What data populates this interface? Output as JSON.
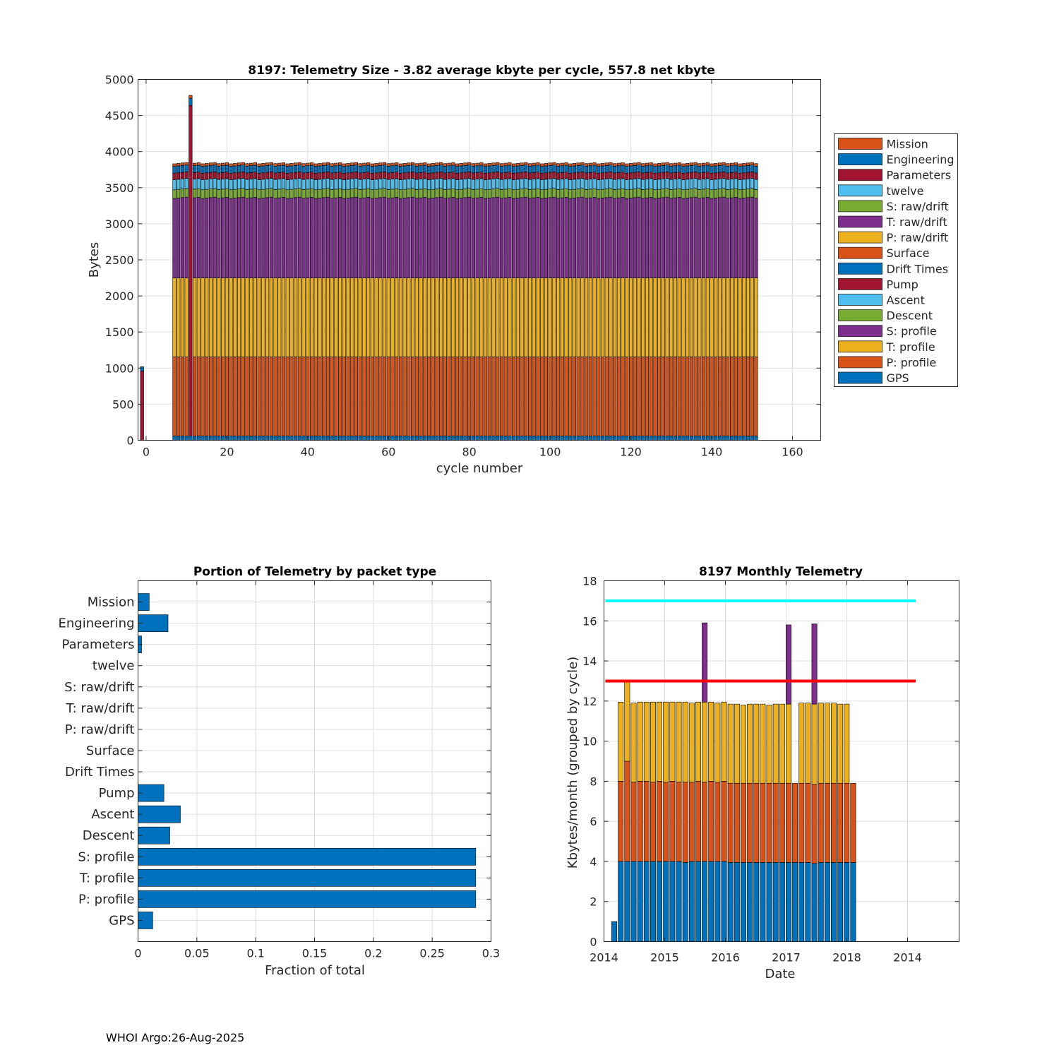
{
  "footer": "WHOI Argo:26-Aug-2025",
  "colors": {
    "Mission": "#D95319",
    "Engineering": "#0072BD",
    "Parameters": "#A2142F",
    "twelve": "#4DBEEE",
    "S: raw/drift": "#77AC30",
    "T: raw/drift": "#7E2F8E",
    "P: raw/drift": "#EDB120",
    "Surface": "#D95319",
    "Drift Times": "#0072BD",
    "Pump": "#A2142F",
    "Ascent": "#4DBEEE",
    "Descent": "#77AC30",
    "S: profile": "#7E2F8E",
    "T: profile": "#EDB120",
    "P: profile": "#D95319",
    "GPS": "#0072BD",
    "bar_blue": "#0072BD",
    "cyan_line": "#00FFFF",
    "red_line": "#FF0000"
  },
  "chart_data": [
    {
      "id": "telemetry_size",
      "type": "bar",
      "stacked": true,
      "title": "8197: Telemetry Size - 3.82 average kbyte per cycle,  557.8 net kbyte",
      "xlabel": "cycle number",
      "ylabel": "Bytes",
      "xlim": [
        -2,
        167
      ],
      "ylim": [
        0,
        5000
      ],
      "xticks": [
        0,
        20,
        40,
        60,
        80,
        100,
        120,
        140,
        160
      ],
      "yticks": [
        0,
        500,
        1000,
        1500,
        2000,
        2500,
        3000,
        3500,
        4000,
        4500,
        5000
      ],
      "legend_position": "outside-right",
      "legend": [
        "Mission",
        "Engineering",
        "Parameters",
        "twelve",
        "S: raw/drift",
        "T: raw/drift",
        "P: raw/drift",
        "Surface",
        "Drift Times",
        "Pump",
        "Ascent",
        "Descent",
        "S: profile",
        "T: profile",
        "P: profile",
        "GPS"
      ],
      "stack_order": [
        "GPS",
        "P: profile",
        "T: profile",
        "S: profile",
        "Descent",
        "Ascent",
        "Pump",
        "Drift Times",
        "Surface",
        "P: raw/drift",
        "T: raw/drift",
        "S: raw/drift",
        "twelve",
        "Parameters",
        "Engineering",
        "Mission"
      ],
      "special_cycles": [
        {
          "cycle": -1,
          "segments": {
            "Pump": 960,
            "Engineering": 60,
            "Mission": 0
          }
        },
        {
          "cycle": 11,
          "segments": {
            "GPS": 60,
            "Pump": 4580,
            "Engineering": 100,
            "Mission": 40
          }
        }
      ],
      "typical_cycle": {
        "first_cycle": 7,
        "last_cycle": 151,
        "segments": {
          "GPS": 60,
          "P: profile": 1095,
          "T: profile": 1095,
          "S: profile": 1110,
          "Descent": 120,
          "Ascent": 140,
          "Pump": 90,
          "Engineering": 95,
          "Mission": 35
        }
      }
    },
    {
      "id": "portion_by_type",
      "type": "bar",
      "orientation": "horizontal",
      "title": "Portion of Telemetry by packet type",
      "xlabel": "Fraction of total",
      "ylabel": "",
      "xlim": [
        0,
        0.3
      ],
      "xticks": [
        0,
        0.05,
        0.1,
        0.15,
        0.2,
        0.25,
        0.3
      ],
      "xtick_labels": [
        "0",
        "0.05",
        "0.1",
        "0.15",
        "0.2",
        "0.25",
        "0.3"
      ],
      "categories": [
        "Mission",
        "Engineering",
        "Parameters",
        "twelve",
        "S: raw/drift",
        "T: raw/drift",
        "P: raw/drift",
        "Surface",
        "Drift Times",
        "Pump",
        "Ascent",
        "Descent",
        "S: profile",
        "T: profile",
        "P: profile",
        "GPS"
      ],
      "values": [
        0.0095,
        0.0255,
        0.003,
        0,
        0,
        0,
        0,
        0,
        0,
        0.022,
        0.036,
        0.027,
        0.287,
        0.287,
        0.287,
        0.0125
      ]
    },
    {
      "id": "monthly_telemetry",
      "type": "bar",
      "stacked": true,
      "title": "8197 Monthly Telemetry",
      "xlabel": "Date",
      "ylabel": "Kbytes/month (grouped by cycle)",
      "ylim": [
        0,
        18
      ],
      "yticks": [
        0,
        2,
        4,
        6,
        8,
        10,
        12,
        14,
        16,
        18
      ],
      "xtick_labels": [
        "2014",
        "2015",
        "2016",
        "2017",
        "2018",
        "2014"
      ],
      "series_colors": [
        "#0072BD",
        "#D95319",
        "#EDB120",
        "#7E2F8E"
      ],
      "months": [
        [
          1.0
        ],
        [
          4,
          4,
          3.95
        ],
        [
          4,
          5,
          4
        ],
        [
          4,
          3.95,
          3.95
        ],
        [
          4,
          4,
          3.95
        ],
        [
          4,
          4,
          3.95
        ],
        [
          4,
          3.95,
          4
        ],
        [
          4,
          4,
          3.95
        ],
        [
          4,
          3.95,
          4
        ],
        [
          4,
          4,
          3.95
        ],
        [
          4,
          3.95,
          4
        ],
        [
          3.95,
          4,
          4
        ],
        [
          4,
          3.95,
          3.95
        ],
        [
          4,
          4,
          3.95
        ],
        [
          4,
          3.95,
          4,
          3.95
        ],
        [
          4,
          4,
          3.95
        ],
        [
          4,
          3.95,
          3.95
        ],
        [
          4,
          4,
          3.95
        ],
        [
          3.95,
          3.95,
          3.95
        ],
        [
          3.95,
          3.95,
          3.95
        ],
        [
          3.95,
          3.95,
          3.9
        ],
        [
          3.95,
          3.95,
          3.95
        ],
        [
          3.95,
          3.95,
          3.95
        ],
        [
          3.95,
          3.95,
          3.95
        ],
        [
          3.95,
          3.95,
          3.9
        ],
        [
          3.95,
          3.95,
          3.95
        ],
        [
          3.95,
          3.95,
          3.95
        ],
        [
          3.95,
          3.95,
          3.95,
          3.95
        ],
        [
          3.95,
          3.95
        ],
        [
          3.95,
          3.95,
          4
        ],
        [
          3.95,
          3.95,
          4
        ],
        [
          3.9,
          3.95,
          4,
          4
        ],
        [
          3.95,
          3.95,
          4
        ],
        [
          3.95,
          3.95,
          4
        ],
        [
          3.95,
          3.95,
          4
        ],
        [
          3.95,
          3.95,
          3.95
        ],
        [
          3.95,
          3.95,
          3.95
        ],
        [
          3.95,
          3.95
        ]
      ],
      "reference_lines": [
        {
          "value": 17,
          "color": "#00FFFF"
        },
        {
          "value": 13,
          "color": "#FF0000"
        }
      ]
    }
  ]
}
